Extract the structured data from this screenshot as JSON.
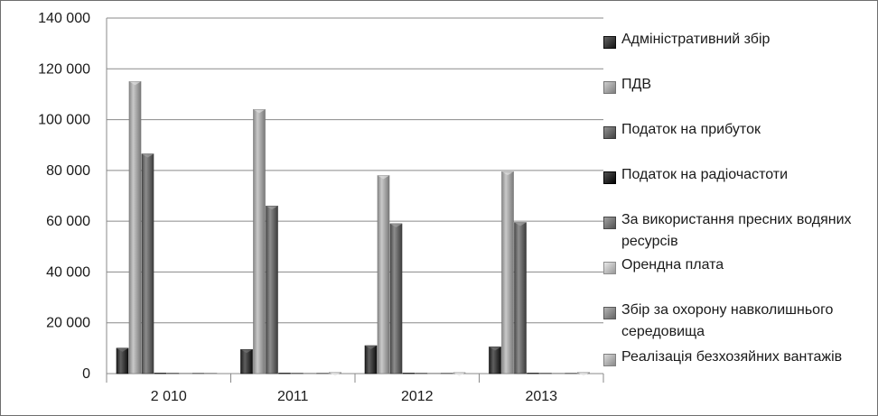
{
  "chart_data": {
    "type": "bar",
    "categories": [
      "2 010",
      "2011",
      "2012",
      "2013"
    ],
    "series": [
      {
        "name": "Адміністративний збір",
        "values": [
          10000,
          9500,
          11000,
          10500
        ]
      },
      {
        "name": "ПДВ",
        "values": [
          115000,
          104000,
          78000,
          79500
        ]
      },
      {
        "name": "Податок на прибуток",
        "values": [
          86500,
          66000,
          59000,
          59500
        ]
      },
      {
        "name": "Податок на радіочастоти",
        "values": [
          0,
          0,
          0,
          0
        ]
      },
      {
        "name": "За використання пресних водяних ресурсів",
        "values": [
          0,
          0,
          0,
          0
        ]
      },
      {
        "name": "Орендна плата",
        "values": [
          0,
          0,
          0,
          0
        ]
      },
      {
        "name": "Збір за охорону навколишнього середовища",
        "values": [
          0,
          0,
          0,
          0
        ]
      },
      {
        "name": "Реалізація безхозяйних вантажів",
        "values": [
          0,
          500,
          400,
          500
        ]
      }
    ],
    "ylim": [
      0,
      140000
    ],
    "yticks": [
      0,
      20000,
      40000,
      60000,
      80000,
      100000,
      120000,
      140000
    ],
    "ytick_labels": [
      "0",
      "20 000",
      "40 000",
      "60 000",
      "80 000",
      "100 000",
      "120 000",
      "140 000"
    ],
    "grid": true,
    "legend_position": "right",
    "title": "",
    "xlabel": "",
    "ylabel": "",
    "series_colors": [
      "#3c3c3c",
      "#a6a6a6",
      "#6a6a6a",
      "#2a2a2a",
      "#7a7a7a",
      "#c0c0c0",
      "#8c8c8c",
      "#b2b2b2"
    ]
  }
}
